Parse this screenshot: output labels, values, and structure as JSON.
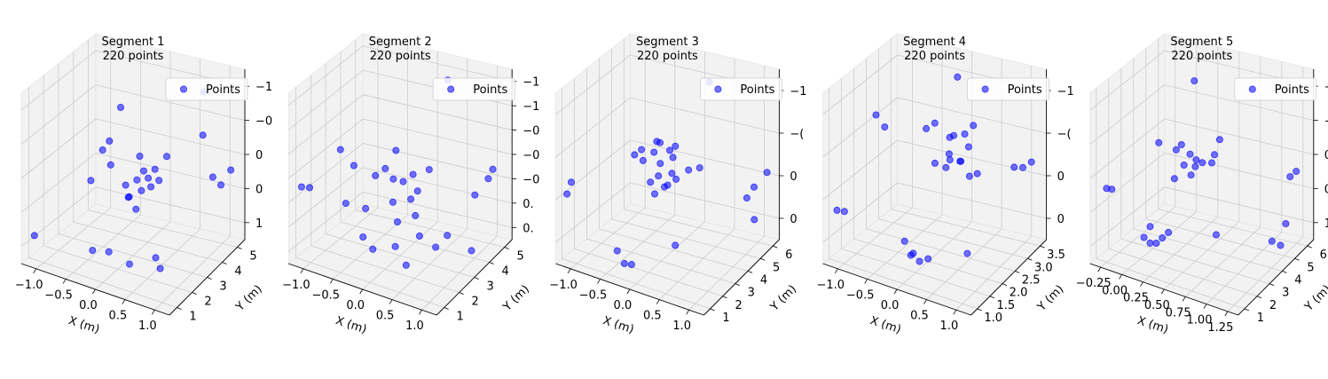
{
  "chart_data": [
    {
      "type": "scatter",
      "title_line1": "Segment 1",
      "title_line2": "220 points",
      "legend_label": "Points",
      "xlabel": "X (m)",
      "ylabel": "Y (m)",
      "x_ticks": [
        "−1.0",
        "−0.5",
        "0.0",
        "0.5",
        "1.0"
      ],
      "y_ticks": [
        "1",
        "2",
        "3",
        "4",
        "5"
      ],
      "z_ticks": [
        "1",
        "0",
        "0",
        "−0",
        "−1"
      ],
      "color": "#0000ff",
      "points": [
        [
          -1.05,
          1.0,
          -1.1
        ],
        [
          -0.2,
          2.8,
          0.6
        ],
        [
          -0.1,
          3.5,
          -0.2
        ],
        [
          0.0,
          3.0,
          -0.4
        ],
        [
          0.05,
          3.2,
          -0.3
        ],
        [
          0.1,
          2.9,
          -0.5
        ],
        [
          0.15,
          3.1,
          -0.35
        ],
        [
          -0.05,
          2.7,
          -0.6
        ],
        [
          0.2,
          3.3,
          -0.25
        ],
        [
          0.25,
          2.9,
          -0.4
        ],
        [
          -0.3,
          2.6,
          -0.2
        ],
        [
          -0.4,
          2.5,
          0.0
        ],
        [
          -0.35,
          2.7,
          0.1
        ],
        [
          0.3,
          3.6,
          -0.1
        ],
        [
          0.6,
          4.6,
          0.7
        ],
        [
          0.8,
          4.4,
          -0.4
        ],
        [
          0.9,
          4.5,
          -0.5
        ],
        [
          1.0,
          4.7,
          -0.3
        ],
        [
          0.7,
          4.2,
          0.2
        ],
        [
          -0.1,
          1.8,
          -1.2
        ],
        [
          0.2,
          1.9,
          -1.3
        ],
        [
          0.5,
          2.3,
          -1.2
        ],
        [
          0.6,
          2.2,
          -1.3
        ],
        [
          -0.3,
          1.6,
          -1.2
        ],
        [
          -0.5,
          2.2,
          -0.4
        ],
        [
          0.05,
          2.4,
          -0.5
        ],
        [
          0.1,
          2.6,
          -0.7
        ],
        [
          -0.15,
          2.9,
          -0.5
        ],
        [
          0.35,
          3.0,
          -0.3
        ]
      ]
    },
    {
      "type": "scatter",
      "title_line1": "Segment 2",
      "title_line2": "220 points",
      "legend_label": "Points",
      "xlabel": "X (m)",
      "ylabel": "Y (m)",
      "x_ticks": [
        "−1.0",
        "−0.5",
        "0.0",
        "0.5",
        "1.0"
      ],
      "y_ticks": [
        "1",
        "2",
        "3",
        "4",
        "5"
      ],
      "z_ticks": [
        "0.",
        "0.",
        "−0",
        "−0",
        "−0",
        "−1",
        "−1"
      ],
      "color": "#0000ff",
      "points": [
        [
          -1.05,
          1.0,
          -0.3
        ],
        [
          -0.95,
          1.1,
          -0.3
        ],
        [
          -0.6,
          1.6,
          0.3
        ],
        [
          -0.5,
          2.0,
          0.0
        ],
        [
          -0.3,
          2.5,
          -0.2
        ],
        [
          -0.2,
          2.7,
          -0.1
        ],
        [
          -0.1,
          2.8,
          -0.25
        ],
        [
          0.0,
          3.0,
          -0.3
        ],
        [
          0.1,
          3.2,
          -0.2
        ],
        [
          0.2,
          3.1,
          -0.4
        ],
        [
          -0.05,
          2.6,
          -0.55
        ],
        [
          0.15,
          2.9,
          -0.5
        ],
        [
          -0.2,
          3.3,
          0.05
        ],
        [
          0.3,
          3.4,
          -0.1
        ],
        [
          0.2,
          4.8,
          0.95
        ],
        [
          0.9,
          4.6,
          -0.3
        ],
        [
          1.0,
          4.5,
          -0.1
        ],
        [
          0.8,
          4.2,
          -0.5
        ],
        [
          -0.3,
          1.8,
          -1.0
        ],
        [
          0.1,
          2.2,
          -1.1
        ],
        [
          0.4,
          2.5,
          -0.9
        ],
        [
          0.6,
          2.7,
          -1.05
        ],
        [
          0.7,
          3.0,
          -0.9
        ],
        [
          -0.2,
          2.0,
          -1.2
        ],
        [
          0.3,
          2.1,
          -1.3
        ],
        [
          1.0,
          3.3,
          -1.1
        ],
        [
          -0.4,
          2.3,
          -0.7
        ],
        [
          0.05,
          2.5,
          -0.8
        ],
        [
          0.25,
          2.8,
          -0.7
        ],
        [
          -0.6,
          1.9,
          -0.6
        ]
      ]
    },
    {
      "type": "scatter",
      "title_line1": "Segment 3",
      "title_line2": "220 points",
      "legend_label": "Points",
      "xlabel": "X (m)",
      "ylabel": "Y (m)",
      "x_ticks": [
        "−1.0",
        "−0.5",
        "0.0",
        "0.5",
        "1.0"
      ],
      "y_ticks": [
        "1",
        "2",
        "3",
        "4",
        "5",
        "6"
      ],
      "z_ticks": [
        "0",
        "0",
        "−(",
        "−1"
      ],
      "color": "#0000ff",
      "points": [
        [
          -1.05,
          1.0,
          -0.5
        ],
        [
          -1.0,
          1.1,
          -0.3
        ],
        [
          -0.1,
          3.6,
          0.25
        ],
        [
          0.0,
          3.4,
          0.3
        ],
        [
          0.1,
          3.7,
          0.15
        ],
        [
          0.05,
          3.2,
          0.0
        ],
        [
          0.2,
          3.5,
          0.1
        ],
        [
          -0.2,
          3.0,
          0.0
        ],
        [
          0.15,
          3.9,
          0.2
        ],
        [
          -0.05,
          2.9,
          -0.3
        ],
        [
          0.3,
          3.3,
          -0.2
        ],
        [
          0.4,
          3.8,
          -0.1
        ],
        [
          0.5,
          4.2,
          -0.1
        ],
        [
          -0.3,
          2.8,
          0.1
        ],
        [
          -0.25,
          3.1,
          0.15
        ],
        [
          0.3,
          5.8,
          1.0
        ],
        [
          0.9,
          6.0,
          -0.8
        ],
        [
          1.0,
          6.1,
          -0.6
        ],
        [
          1.05,
          5.9,
          -1.1
        ],
        [
          1.2,
          6.2,
          -0.3
        ],
        [
          -0.3,
          1.5,
          -1.3
        ],
        [
          -0.2,
          1.6,
          -1.5
        ],
        [
          -0.1,
          1.7,
          -1.5
        ],
        [
          0.4,
          2.8,
          -1.2
        ],
        [
          0.0,
          3.0,
          -0.5
        ],
        [
          0.1,
          3.3,
          -0.4
        ],
        [
          -0.05,
          3.5,
          -0.3
        ],
        [
          0.2,
          3.1,
          -0.3
        ],
        [
          -0.15,
          3.6,
          0.05
        ],
        [
          0.25,
          3.2,
          -0.1
        ]
      ]
    },
    {
      "type": "scatter",
      "title_line1": "Segment 4",
      "title_line2": "220 points",
      "legend_label": "Points",
      "xlabel": "X (m)",
      "ylabel": "Y (m)",
      "x_ticks": [
        "−1.0",
        "−0.5",
        "0.0",
        "0.5",
        "1.0"
      ],
      "y_ticks": [
        "1.0",
        "1.5",
        "2.0",
        "2.5",
        "3.0",
        "3.5"
      ],
      "z_ticks": [
        "0",
        "0",
        "−(",
        "−1"
      ],
      "color": "#0000ff",
      "points": [
        [
          -1.05,
          1.0,
          -0.9
        ],
        [
          -0.95,
          1.05,
          -0.9
        ],
        [
          -0.3,
          2.8,
          0.2
        ],
        [
          -0.2,
          2.9,
          0.3
        ],
        [
          0.0,
          3.0,
          0.1
        ],
        [
          0.1,
          2.9,
          0.2
        ],
        [
          0.2,
          3.1,
          0.2
        ],
        [
          0.05,
          2.7,
          -0.3
        ],
        [
          0.25,
          2.8,
          -0.15
        ],
        [
          0.3,
          3.2,
          0.35
        ],
        [
          0.15,
          2.6,
          -0.1
        ],
        [
          -0.05,
          2.5,
          -0.2
        ],
        [
          0.35,
          2.9,
          -0.4
        ],
        [
          0.4,
          3.1,
          -0.4
        ],
        [
          -0.1,
          3.6,
          0.9
        ],
        [
          0.8,
          3.6,
          -0.3
        ],
        [
          0.9,
          3.7,
          -0.3
        ],
        [
          1.0,
          3.8,
          -0.2
        ],
        [
          -0.8,
          2.0,
          0.5
        ],
        [
          -0.7,
          2.1,
          0.3
        ],
        [
          -0.2,
          1.6,
          -1.3
        ],
        [
          -0.1,
          1.7,
          -1.5
        ],
        [
          0.0,
          1.7,
          -1.6
        ],
        [
          0.1,
          1.8,
          -1.55
        ],
        [
          0.5,
          2.4,
          -1.5
        ],
        [
          -0.1,
          1.6,
          -1.5
        ],
        [
          0.1,
          2.7,
          -0.05
        ],
        [
          0.2,
          2.9,
          -0.2
        ],
        [
          0.3,
          3.0,
          0.05
        ]
      ]
    },
    {
      "type": "scatter",
      "title_line1": "Segment 5",
      "title_line2": "220 points",
      "legend_label": "Points",
      "xlabel": "X (m)",
      "ylabel": "Y (m)",
      "x_ticks": [
        "−0.25",
        "0.00",
        "0.25",
        "0.50",
        "0.75",
        "1.00",
        "1.25"
      ],
      "y_ticks": [
        "1",
        "2",
        "3",
        "4",
        "5",
        "6"
      ],
      "z_ticks": [
        "1",
        "0",
        "0",
        "−0",
        "−1"
      ],
      "color": "#0000ff",
      "points": [
        [
          -0.3,
          1.0,
          -0.5
        ],
        [
          -0.25,
          1.05,
          -0.5
        ],
        [
          0.1,
          2.0,
          0.3
        ],
        [
          0.2,
          2.5,
          0.1
        ],
        [
          0.3,
          2.8,
          0.0
        ],
        [
          0.35,
          2.9,
          -0.1
        ],
        [
          0.4,
          3.0,
          -0.15
        ],
        [
          0.25,
          2.7,
          -0.2
        ],
        [
          0.3,
          3.1,
          -0.3
        ],
        [
          0.45,
          3.3,
          -0.2
        ],
        [
          0.5,
          3.5,
          0.2
        ],
        [
          0.2,
          2.4,
          -0.4
        ],
        [
          0.15,
          3.8,
          1.0
        ],
        [
          1.05,
          4.8,
          -0.5
        ],
        [
          1.1,
          4.9,
          -0.4
        ],
        [
          0.05,
          1.4,
          -1.3
        ],
        [
          0.1,
          1.5,
          -1.4
        ],
        [
          0.15,
          1.6,
          -1.4
        ],
        [
          0.2,
          1.7,
          -1.3
        ],
        [
          0.6,
          2.8,
          -1.3
        ],
        [
          1.0,
          4.0,
          -1.5
        ],
        [
          1.1,
          4.3,
          -1.2
        ],
        [
          1.0,
          4.5,
          -1.7
        ],
        [
          0.25,
          1.8,
          -1.2
        ],
        [
          0.1,
          1.5,
          -1.1
        ],
        [
          0.35,
          2.6,
          -0.3
        ],
        [
          0.5,
          3.2,
          0.0
        ],
        [
          0.3,
          2.3,
          0.3
        ]
      ]
    }
  ]
}
